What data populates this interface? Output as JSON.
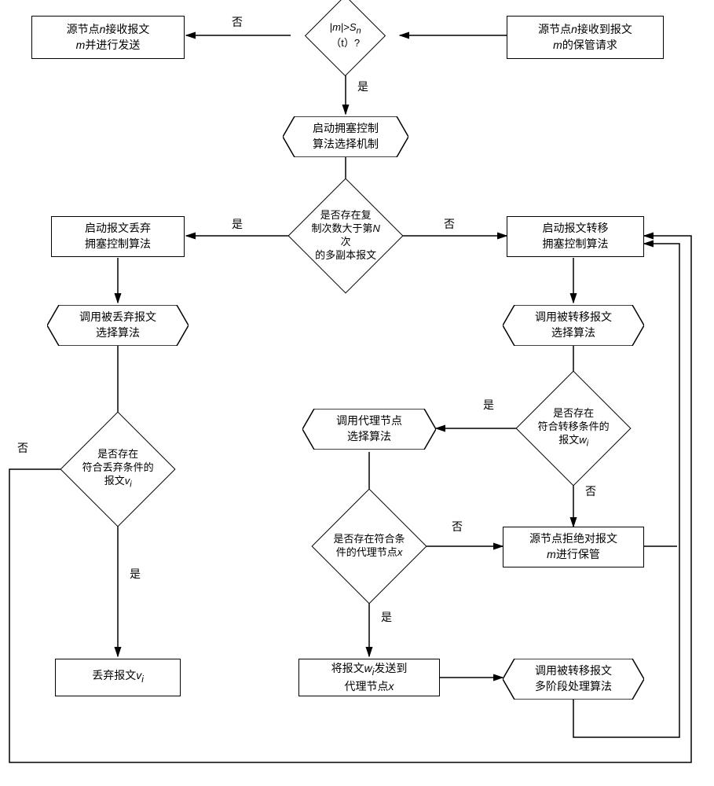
{
  "colors": {
    "stroke": "#000000",
    "bg": "#ffffff"
  },
  "labels": {
    "no": "否",
    "yes": "是"
  },
  "nodes": {
    "top_left_box": "源节点n接收报文\nm并进行发送",
    "top_right_box": "源节点n接收到报文\nm的保管请求",
    "top_diamond": "|m|>Sₙ（t）?",
    "start_congestion": "启动拥塞控制\n算法选择机制",
    "copy_count_diamond": "是否存在复\n制次数大于第N次\n的多副本报文",
    "left_start_discard": "启动报文丢弃\n拥塞控制算法",
    "right_start_transfer": "启动报文转移\n拥塞控制算法",
    "call_discard_select": "调用被丢弃报文\n选择算法",
    "call_transfer_select": "调用被转移报文\n选择算法",
    "discard_cond_diamond": "是否存在\n符合丢弃条件的\n报文vᵢ",
    "transfer_cond_diamond": "是否存在\n符合转移条件的\n报文wᵢ",
    "call_proxy_select": "调用代理节点\n选择算法",
    "proxy_cond_diamond": "是否存在符合条\n件的代理节点x",
    "source_refuse": "源节点拒绝对报文\nm进行保管",
    "discard_v": "丢弃报文vᵢ",
    "send_to_proxy": "将报文wᵢ发送到\n代理节点x",
    "call_multistage": "调用被转移报文\n多阶段处理算法"
  },
  "geometry": {
    "arrow_stroke_width": 1.5,
    "font_size": 14
  }
}
